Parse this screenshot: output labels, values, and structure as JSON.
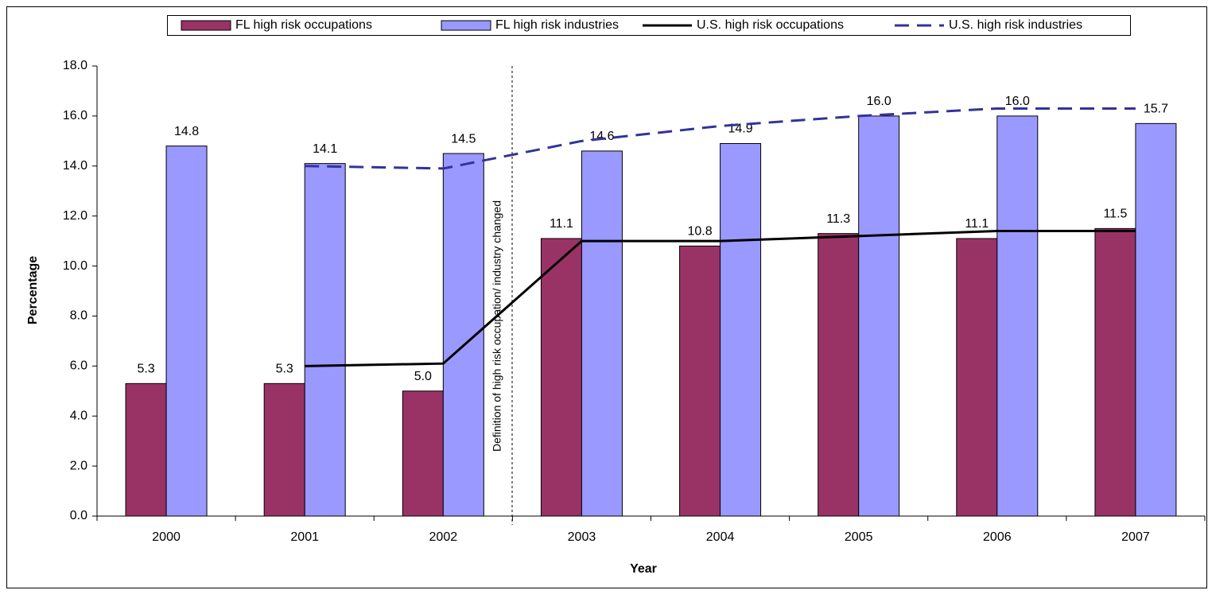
{
  "chart_data": {
    "type": "bar",
    "x_label": "Year",
    "y_label": "Percentage",
    "annotation": "Definition of high risk occupation/ industry changed",
    "categories": [
      "2000",
      "2001",
      "2002",
      "2003",
      "2004",
      "2005",
      "2006",
      "2007"
    ],
    "series": [
      {
        "name": "FL high risk occupations",
        "type": "bar",
        "color": "#993366",
        "values": [
          5.3,
          5.3,
          5.0,
          11.1,
          10.8,
          11.3,
          11.1,
          11.5
        ],
        "value_labels": [
          "5.3",
          "5.3",
          "5.0",
          "11.1",
          "10.8",
          "11.3",
          "11.1",
          "11.5"
        ]
      },
      {
        "name": "FL high risk industries",
        "type": "bar",
        "color": "#9999ff",
        "values": [
          14.8,
          14.1,
          14.5,
          14.6,
          14.9,
          16.0,
          16.0,
          15.7
        ],
        "value_labels": [
          "14.8",
          "14.1",
          "14.5",
          "14.6",
          "14.9",
          "16.0",
          "16.0",
          "15.7"
        ]
      },
      {
        "name": "U.S. high risk occupations",
        "type": "line",
        "color": "#000000",
        "dash": false,
        "values": [
          null,
          6.0,
          6.1,
          11.0,
          11.0,
          11.2,
          11.4,
          11.4
        ]
      },
      {
        "name": "U.S. high risk industries",
        "type": "line",
        "color": "#333399",
        "dash": true,
        "values": [
          null,
          14.0,
          13.9,
          15.0,
          15.6,
          16.0,
          16.3,
          16.3
        ]
      }
    ],
    "ylim": [
      0,
      18
    ],
    "yticks": [
      {
        "value": 0,
        "label": "0.0"
      },
      {
        "value": 2,
        "label": "2.0"
      },
      {
        "value": 4,
        "label": "4.0"
      },
      {
        "value": 6,
        "label": "6.0"
      },
      {
        "value": 8,
        "label": "8.0"
      },
      {
        "value": 10,
        "label": "10.0"
      },
      {
        "value": 12,
        "label": "12.0"
      },
      {
        "value": 14,
        "label": "14.0"
      },
      {
        "value": 16,
        "label": "16.0"
      },
      {
        "value": 18,
        "label": "18.0"
      }
    ],
    "grid": false
  }
}
